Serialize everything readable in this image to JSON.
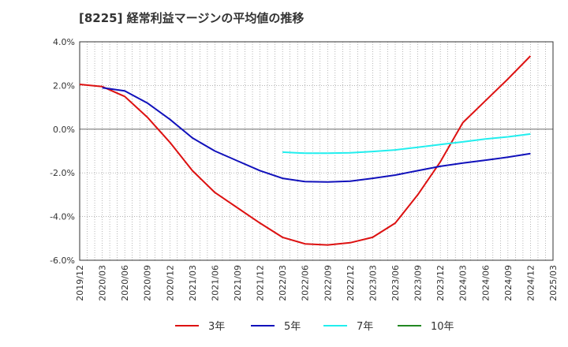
{
  "chart_data": {
    "type": "line",
    "title": "[8225]  経常利益マージンの平均値の推移",
    "xlabel": "",
    "ylabel": "",
    "x_ticks": [
      "2019/12",
      "2020/03",
      "2020/06",
      "2020/09",
      "2020/12",
      "2021/03",
      "2021/06",
      "2021/09",
      "2021/12",
      "2022/03",
      "2022/06",
      "2022/09",
      "2022/12",
      "2023/03",
      "2023/06",
      "2023/09",
      "2023/12",
      "2024/03",
      "2024/06",
      "2024/09",
      "2024/12",
      "2025/03"
    ],
    "ylim": [
      -6.0,
      4.0
    ],
    "y_ticks": [
      "4.0%",
      "2.0%",
      "0.0%",
      "-2.0%",
      "-4.0%",
      "-6.0%"
    ],
    "y_tick_values": [
      4,
      2,
      0,
      -2,
      -4,
      -6
    ],
    "grid": true,
    "legend_position": "bottom",
    "series": [
      {
        "name": "3年",
        "color": "#dd1111",
        "x": [
          "2019/12",
          "2020/03",
          "2020/06",
          "2020/09",
          "2020/12",
          "2021/03",
          "2021/06",
          "2021/09",
          "2021/12",
          "2022/03",
          "2022/06",
          "2022/09",
          "2022/12",
          "2023/03",
          "2023/06",
          "2023/09",
          "2023/12",
          "2024/03",
          "2024/06",
          "2024/09",
          "2024/12"
        ],
        "values": [
          2.05,
          1.95,
          1.5,
          0.55,
          -0.6,
          -1.9,
          -2.9,
          -3.6,
          -4.3,
          -4.95,
          -5.25,
          -5.3,
          -5.2,
          -4.95,
          -4.3,
          -3.0,
          -1.5,
          0.3,
          1.3,
          2.3,
          3.35
        ]
      },
      {
        "name": "5年",
        "color": "#1111bb",
        "x": [
          "2019/12",
          "2020/03",
          "2020/06",
          "2020/09",
          "2020/12",
          "2021/03",
          "2021/06",
          "2021/09",
          "2021/12",
          "2022/03",
          "2022/06",
          "2022/09",
          "2022/12",
          "2023/03",
          "2023/06",
          "2023/09",
          "2023/12",
          "2024/03",
          "2024/06",
          "2024/09",
          "2024/12"
        ],
        "values": [
          null,
          1.9,
          1.75,
          1.2,
          0.45,
          -0.4,
          -1.0,
          -1.45,
          -1.9,
          -2.25,
          -2.4,
          -2.42,
          -2.38,
          -2.25,
          -2.1,
          -1.9,
          -1.7,
          -1.55,
          -1.42,
          -1.28,
          -1.12
        ]
      },
      {
        "name": "7年",
        "color": "#22eeee",
        "x": [
          "2019/12",
          "2020/03",
          "2020/06",
          "2020/09",
          "2020/12",
          "2021/03",
          "2021/06",
          "2021/09",
          "2021/12",
          "2022/03",
          "2022/06",
          "2022/09",
          "2022/12",
          "2023/03",
          "2023/06",
          "2023/09",
          "2023/12",
          "2024/03",
          "2024/06",
          "2024/09",
          "2024/12"
        ],
        "values": [
          null,
          null,
          null,
          null,
          null,
          null,
          null,
          null,
          null,
          -1.05,
          -1.1,
          -1.1,
          -1.08,
          -1.02,
          -0.95,
          -0.83,
          -0.7,
          -0.58,
          -0.45,
          -0.35,
          -0.22
        ]
      },
      {
        "name": "10年",
        "color": "#228822",
        "x": [],
        "values": []
      }
    ]
  }
}
